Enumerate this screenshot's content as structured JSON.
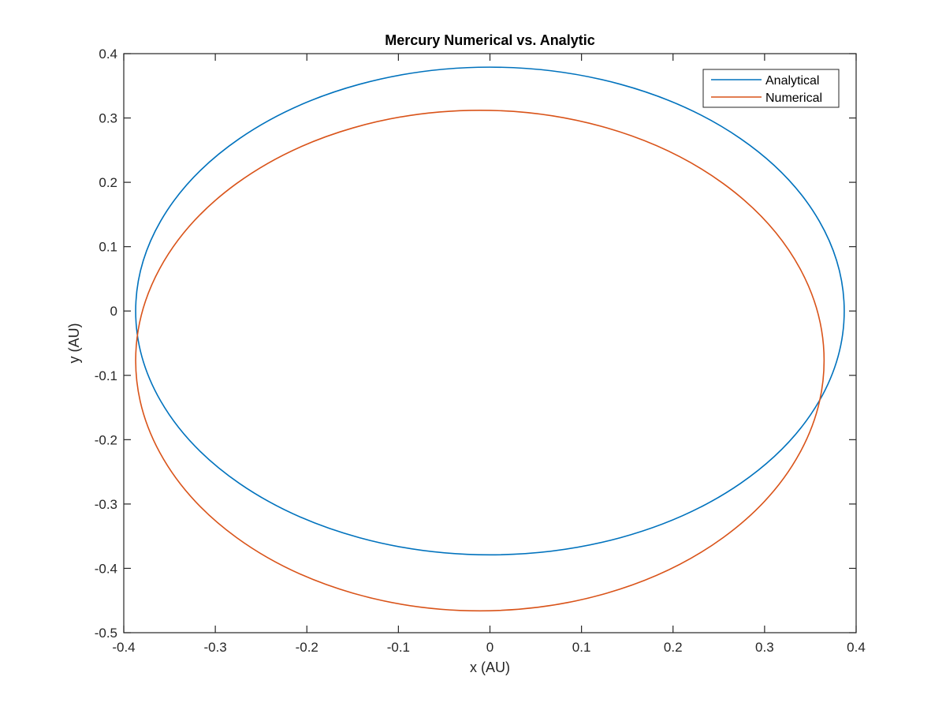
{
  "chart_data": {
    "type": "line",
    "title": "Mercury Numerical vs. Analytic",
    "xlabel": "x (AU)",
    "ylabel": "y (AU)",
    "xlim": [
      -0.4,
      0.4
    ],
    "ylim": [
      -0.5,
      0.4
    ],
    "x_ticks": [
      -0.4,
      -0.3,
      -0.2,
      -0.1,
      0,
      0.1,
      0.2,
      0.3,
      0.4
    ],
    "x_tick_labels": [
      "-0.4",
      "-0.3",
      "-0.2",
      "-0.1",
      "0",
      "0.1",
      "0.2",
      "0.3",
      "0.4"
    ],
    "y_ticks": [
      -0.5,
      -0.4,
      -0.3,
      -0.2,
      -0.1,
      0,
      0.1,
      0.2,
      0.3,
      0.4
    ],
    "y_tick_labels": [
      "-0.5",
      "-0.4",
      "-0.3",
      "-0.2",
      "-0.1",
      "0",
      "0.1",
      "0.2",
      "0.3",
      "0.4"
    ],
    "grid": false,
    "legend_position": "top-right",
    "series": [
      {
        "name": "Analytical",
        "color": "#0072BD",
        "shape": "ellipse",
        "center": [
          0.0,
          0.0
        ],
        "semi_axes": [
          0.387,
          0.379
        ]
      },
      {
        "name": "Numerical",
        "color": "#D95319",
        "shape": "ellipse",
        "center": [
          -0.011,
          -0.077
        ],
        "semi_axes": [
          0.376,
          0.389
        ]
      }
    ]
  }
}
